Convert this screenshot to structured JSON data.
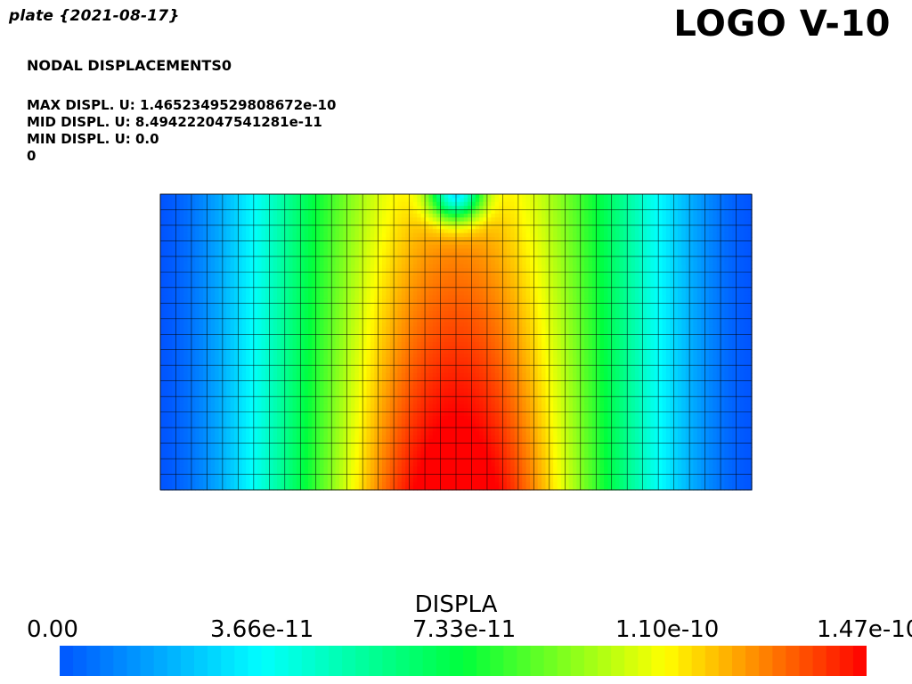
{
  "header": {
    "plot_title": "plate {2021-08-17}",
    "logo": "LOGO V-10"
  },
  "info": {
    "heading": "NODAL DISPLACEMENTS0",
    "max_line": "MAX DISPL. U: 1.4652349529808672e-10",
    "mid_line": "MID DISPL. U: 8.494222047541281e-11",
    "min_line": "MIN DISPL. U: 0.0",
    "step_line": "0"
  },
  "mesh": {
    "columns": 38,
    "rows": 19,
    "field": "nodal displacement magnitude",
    "edge_color": "#000000"
  },
  "legend": {
    "title": "DISPLA",
    "ticks": [
      "0.00",
      "3.66e-11",
      "7.33e-11",
      "1.10e-10",
      "1.47e-10"
    ],
    "min": 0.0,
    "max": 1.47e-10,
    "colormap": "jet",
    "bands": 60
  }
}
